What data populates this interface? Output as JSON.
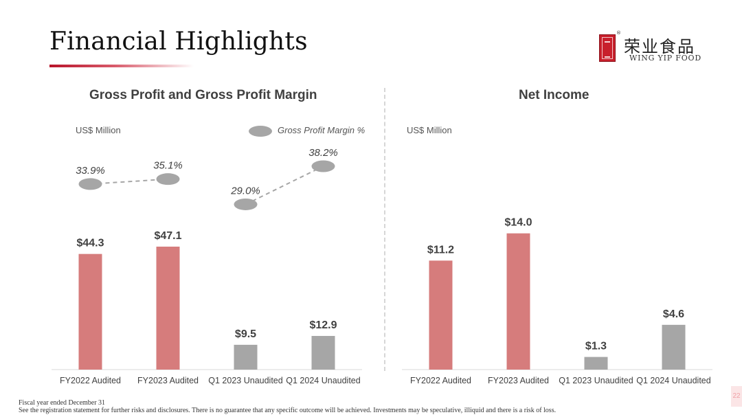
{
  "slide": {
    "title": "Financial Highlights",
    "page_number": "22",
    "footnote_line1": "Fiscal year ended December 31",
    "footnote_line2": "See the registration statement for further risks and disclosures. There is no guarantee that any specific outcome will be achieved. Investments may be speculative, illiquid and there is a risk of loss."
  },
  "logo": {
    "chinese_name": "荣业食品",
    "english_name": "WING YIP FOOD",
    "registered_mark": "®"
  },
  "colors": {
    "audited": "#d67c7c",
    "unaudited": "#a6a6a6",
    "margin_marker": "#a6a6a6",
    "title_underline": "#b8142a"
  },
  "chart_data": [
    {
      "type": "bar",
      "title": "Gross Profit and Gross Profit Margin",
      "unit_label": "US$ Million",
      "categories": [
        "FY2022 Audited",
        "FY2023 Audited",
        "Q1 2023 Unaudited",
        "Q1 2024 Unaudited"
      ],
      "values": [
        44.3,
        47.1,
        9.5,
        12.9
      ],
      "value_labels": [
        "$44.3",
        "$47.1",
        "$9.5",
        "$12.9"
      ],
      "bar_colors": [
        "#d67c7c",
        "#d67c7c",
        "#a6a6a6",
        "#a6a6a6"
      ],
      "ylim": [
        0,
        60
      ],
      "grid": false,
      "overlay": {
        "type": "line",
        "name": "Gross Profit Margin %",
        "values": [
          33.9,
          35.1,
          29.0,
          38.2
        ],
        "value_labels": [
          "33.9%",
          "35.1%",
          "29.0%",
          "38.2%"
        ],
        "ylim": [
          10,
          45
        ],
        "line_style": "dashed",
        "connections": [
          [
            0,
            1
          ],
          [
            2,
            3
          ]
        ]
      },
      "legend": {
        "label": "Gross Profit Margin %",
        "placement": "top-right"
      }
    },
    {
      "type": "bar",
      "title": "Net Income",
      "unit_label": "US$ Million",
      "categories": [
        "FY2022 Audited",
        "FY2023 Audited",
        "Q1 2023 Unaudited",
        "Q1 2024 Unaudited"
      ],
      "values": [
        11.2,
        14.0,
        1.3,
        4.6
      ],
      "value_labels": [
        "$11.2",
        "$14.0",
        "$1.3",
        "$4.6"
      ],
      "bar_colors": [
        "#d67c7c",
        "#d67c7c",
        "#a6a6a6",
        "#a6a6a6"
      ],
      "ylim": [
        0,
        18
      ],
      "grid": false
    }
  ]
}
